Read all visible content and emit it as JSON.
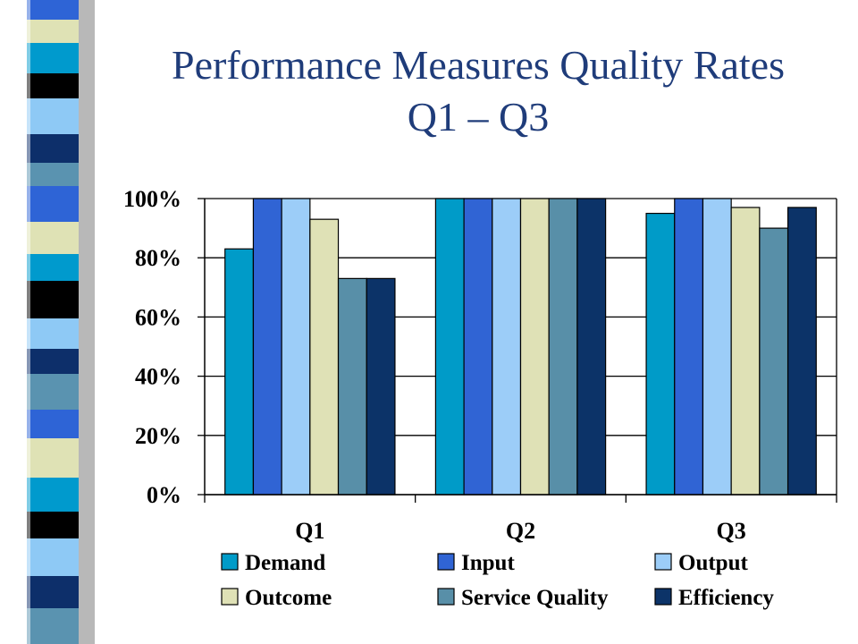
{
  "slide": {
    "title_line1": "Performance Measures Quality Rates",
    "title_line2": "Q1 – Q3"
  },
  "decor": {
    "strip_colors": [
      "#009acd",
      "#2e64d6",
      "#0d2f6a",
      "#000000",
      "#dfe2b5",
      "#5a93b0",
      "#8ec9f5"
    ]
  },
  "chart_data": {
    "type": "bar",
    "categories": [
      "Q1",
      "Q2",
      "Q3"
    ],
    "ylim": [
      0,
      100
    ],
    "yticks": [
      "0%",
      "20%",
      "40%",
      "60%",
      "80%",
      "100%"
    ],
    "grid": true,
    "legend_position": "bottom",
    "series": [
      {
        "name": "Demand",
        "color": "#009bc8",
        "values": [
          83,
          100,
          95
        ]
      },
      {
        "name": "Input",
        "color": "#3064d4",
        "values": [
          100,
          100,
          100
        ]
      },
      {
        "name": "Output",
        "color": "#9ccdf8",
        "values": [
          100,
          100,
          100
        ]
      },
      {
        "name": "Outcome",
        "color": "#dfe1b6",
        "values": [
          93,
          100,
          97
        ]
      },
      {
        "name": "Service Quality",
        "color": "#588fa8",
        "values": [
          73,
          100,
          90
        ]
      },
      {
        "name": "Efficiency",
        "color": "#0c3368",
        "values": [
          73,
          100,
          97
        ]
      }
    ]
  }
}
